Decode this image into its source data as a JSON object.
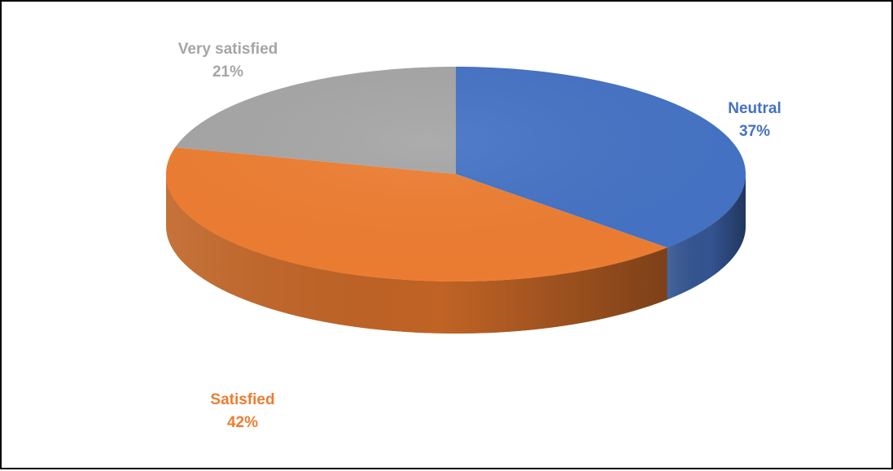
{
  "chart_data": {
    "type": "pie",
    "title": "",
    "style": "3d",
    "slices": [
      {
        "label": "Neutral",
        "percent_label": "37%",
        "value": 37,
        "color": "#4472C4",
        "side_color": "#1F2F52"
      },
      {
        "label": "Satisfied",
        "percent_label": "42%",
        "value": 42,
        "color": "#ED7D31",
        "side_color": "#8A4318"
      },
      {
        "label": "Very satisfied",
        "percent_label": "21%",
        "value": 21,
        "color": "#A5A5A5",
        "side_color": "#6E6E6E"
      }
    ],
    "legend": "none"
  }
}
